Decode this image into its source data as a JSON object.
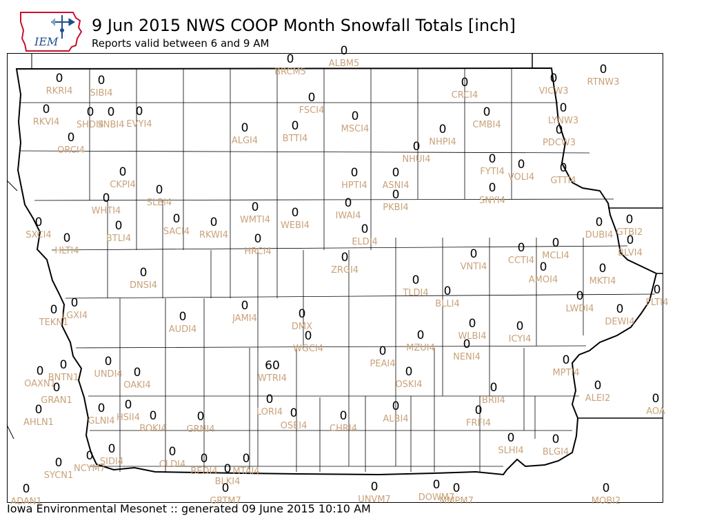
{
  "header": {
    "title": "9 Jun 2015 NWS COOP Month Snowfall Totals [inch]",
    "subtitle": "Reports valid between 6 and 9 AM",
    "logo_text": "IEM"
  },
  "footer": {
    "text": "Iowa Environmental Mesonet :: generated 09 June 2015 10:10 AM"
  },
  "colors": {
    "value": "#000000",
    "station_label": "#c9a27a",
    "logo_red": "#c8102e",
    "logo_blue": "#1f4e8c"
  },
  "stations": [
    {
      "id": "BRCM5",
      "value": "0"
    },
    {
      "id": "ALBM5",
      "value": "0"
    },
    {
      "id": "RKRI4",
      "value": "0"
    },
    {
      "id": "SIBI4",
      "value": "0"
    },
    {
      "id": "CRCI4",
      "value": "0"
    },
    {
      "id": "VICW3",
      "value": "0"
    },
    {
      "id": "RTNW3",
      "value": "0"
    },
    {
      "id": "RKVI4",
      "value": "0"
    },
    {
      "id": "SHDI4",
      "value": "0"
    },
    {
      "id": "SNBI4",
      "value": "0"
    },
    {
      "id": "EVYI4",
      "value": "0"
    },
    {
      "id": "FSCI4",
      "value": "0"
    },
    {
      "id": "MSCI4",
      "value": "0"
    },
    {
      "id": "CMBI4",
      "value": "0"
    },
    {
      "id": "LYNW3",
      "value": "0"
    },
    {
      "id": "ALGI4",
      "value": "0"
    },
    {
      "id": "BTTI4",
      "value": "0"
    },
    {
      "id": "NHPI4",
      "value": "0"
    },
    {
      "id": "PDCW3",
      "value": "0"
    },
    {
      "id": "ORCI4",
      "value": "0"
    },
    {
      "id": "NHUI4",
      "value": "0"
    },
    {
      "id": "FYTI4",
      "value": "0"
    },
    {
      "id": "VOLI4",
      "value": "0"
    },
    {
      "id": "GTTI4",
      "value": "0"
    },
    {
      "id": "CKPI4",
      "value": "0"
    },
    {
      "id": "HPTI4",
      "value": "0"
    },
    {
      "id": "ASNI4",
      "value": "0"
    },
    {
      "id": "SLBI4",
      "value": "0"
    },
    {
      "id": "SNYI4",
      "value": "0"
    },
    {
      "id": "WHTI4",
      "value": "0"
    },
    {
      "id": "PKBI4",
      "value": "0"
    },
    {
      "id": "IWAI4",
      "value": "0"
    },
    {
      "id": "WMTI4",
      "value": "0"
    },
    {
      "id": "WEBI4",
      "value": "0"
    },
    {
      "id": "SACI4",
      "value": "0"
    },
    {
      "id": "RKWI4",
      "value": "0"
    },
    {
      "id": "SXCI4",
      "value": "0"
    },
    {
      "id": "BTLI4",
      "value": "0"
    },
    {
      "id": "DUBI4",
      "value": "0"
    },
    {
      "id": "GTBI2",
      "value": "0"
    },
    {
      "id": "ELDI4",
      "value": "0"
    },
    {
      "id": "HLTI4",
      "value": "0"
    },
    {
      "id": "HRCI4",
      "value": "0"
    },
    {
      "id": "BLVI4",
      "value": "0"
    },
    {
      "id": "VNTI4",
      "value": "0"
    },
    {
      "id": "CCTI4",
      "value": "0"
    },
    {
      "id": "MCLI4",
      "value": "0"
    },
    {
      "id": "ZRGI4",
      "value": "0"
    },
    {
      "id": "AMOI4",
      "value": "0"
    },
    {
      "id": "MKTI4",
      "value": "0"
    },
    {
      "id": "DNSI4",
      "value": "0"
    },
    {
      "id": "TLDI4",
      "value": "0"
    },
    {
      "id": "FLTI4",
      "value": "0"
    },
    {
      "id": "BLLI4",
      "value": "0"
    },
    {
      "id": "LWDI4",
      "value": "0"
    },
    {
      "id": "LGXI4",
      "value": "0"
    },
    {
      "id": "JAMI4",
      "value": "0"
    },
    {
      "id": "TEKN1",
      "value": "0"
    },
    {
      "id": "DEWI4",
      "value": "0"
    },
    {
      "id": "AUDI4",
      "value": "0"
    },
    {
      "id": "DMX",
      "value": "0"
    },
    {
      "id": "WLBI4",
      "value": "0"
    },
    {
      "id": "ICYI4",
      "value": "0"
    },
    {
      "id": "WGCI4",
      "value": "0"
    },
    {
      "id": "NENI4",
      "value": "0"
    },
    {
      "id": "MZUI4",
      "value": "0"
    },
    {
      "id": "PEAI4",
      "value": "0"
    },
    {
      "id": "BNTN1",
      "value": "0"
    },
    {
      "id": "UNDI4",
      "value": "0"
    },
    {
      "id": "WTRI4",
      "value": "60"
    },
    {
      "id": "MPTI4",
      "value": "0"
    },
    {
      "id": "OAXN1",
      "value": "0"
    },
    {
      "id": "OAKI4",
      "value": "0"
    },
    {
      "id": "OSKI4",
      "value": "0"
    },
    {
      "id": "GRAN1",
      "value": "0"
    },
    {
      "id": "ALEI2",
      "value": "0"
    },
    {
      "id": "BRII4",
      "value": "0"
    },
    {
      "id": "AOA",
      "value": "0"
    },
    {
      "id": "LORI4",
      "value": "0"
    },
    {
      "id": "AHLN1",
      "value": "0"
    },
    {
      "id": "GLNI4",
      "value": "0"
    },
    {
      "id": "HSII4",
      "value": "0"
    },
    {
      "id": "ALBI4",
      "value": "0"
    },
    {
      "id": "OSEI4",
      "value": "0"
    },
    {
      "id": "BOKI4",
      "value": "0"
    },
    {
      "id": "GRNI4",
      "value": "0"
    },
    {
      "id": "CHRI4",
      "value": "0"
    },
    {
      "id": "FRFI4",
      "value": "0"
    },
    {
      "id": "SLHI4",
      "value": "0"
    },
    {
      "id": "BLGI4",
      "value": "0"
    },
    {
      "id": "SIDI4",
      "value": "0"
    },
    {
      "id": "CLDI4",
      "value": "0"
    },
    {
      "id": "NCYM7",
      "value": "0"
    },
    {
      "id": "BEDI4",
      "value": "0"
    },
    {
      "id": "MTAI4",
      "value": "0"
    },
    {
      "id": "SYCN1",
      "value": "0"
    },
    {
      "id": "BLKI4",
      "value": "0"
    },
    {
      "id": "ADAN1",
      "value": "0"
    },
    {
      "id": "GRTM7",
      "value": "0"
    },
    {
      "id": "UNVM7",
      "value": "0"
    },
    {
      "id": "DOWM7",
      "value": "0"
    },
    {
      "id": "MMPM7",
      "value": "0"
    },
    {
      "id": "MOBI2",
      "value": "0"
    }
  ]
}
